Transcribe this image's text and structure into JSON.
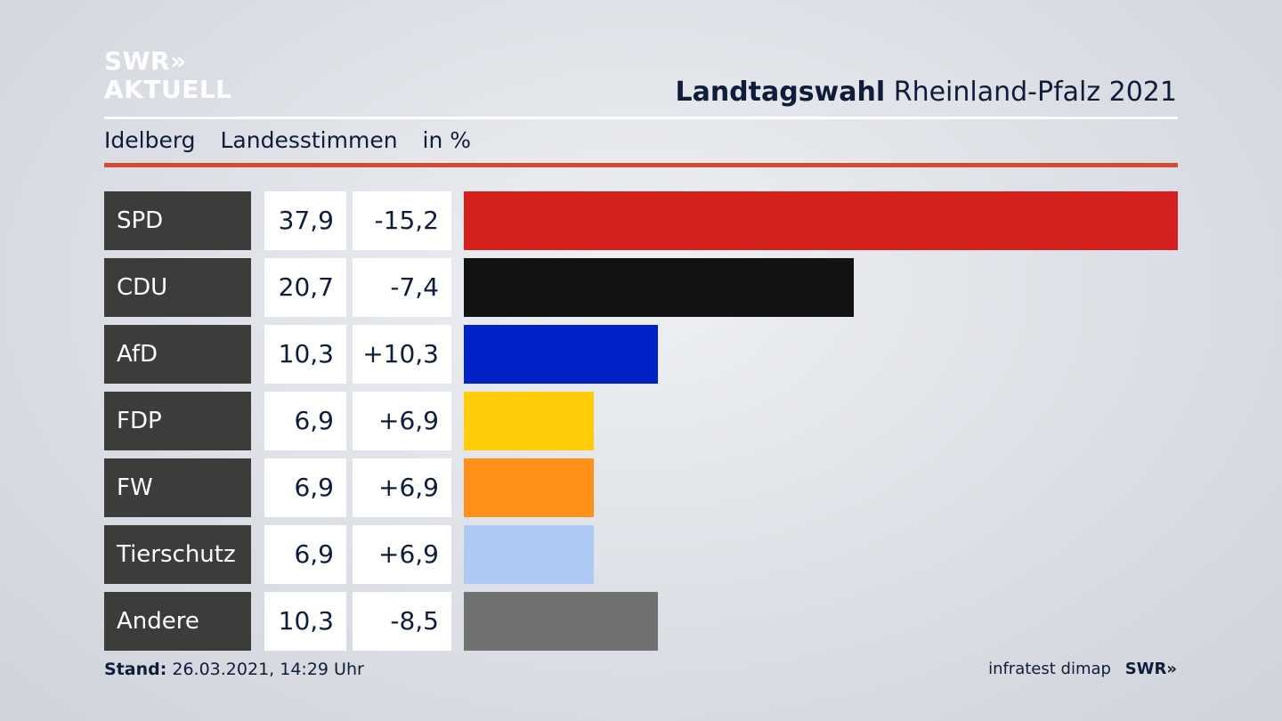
{
  "header": {
    "logo_line1": "SWR»",
    "logo_line2": "AKTUELL",
    "title_strong": "Landtagswahl",
    "title_rest": "Rheinland-Pfalz 2021"
  },
  "subtitle": {
    "place": "Idelberg",
    "measure": "Landesstimmen",
    "unit": "in %"
  },
  "colors": {
    "accent_rule": "#d24b37",
    "label_bg": "#3c3c3a"
  },
  "chart_data": {
    "type": "bar",
    "orientation": "horizontal",
    "categories": [
      "SPD",
      "CDU",
      "AfD",
      "FDP",
      "FW",
      "Tierschutz",
      "Andere"
    ],
    "values": [
      37.9,
      20.7,
      10.3,
      6.9,
      6.9,
      6.9,
      10.3
    ],
    "value_labels": [
      "37,9",
      "20,7",
      "10,3",
      "6,9",
      "6,9",
      "6,9",
      "10,3"
    ],
    "changes": [
      -15.2,
      -7.4,
      10.3,
      6.9,
      6.9,
      6.9,
      -8.5
    ],
    "change_labels": [
      "-15,2",
      "-7,4",
      "+10,3",
      "+6,9",
      "+6,9",
      "+6,9",
      "-8,5"
    ],
    "colors": [
      "#d52020",
      "#121212",
      "#0022c8",
      "#ffcc07",
      "#ff9019",
      "#aecaf2",
      "#717172"
    ],
    "xlim": [
      0,
      37.9
    ]
  },
  "footer": {
    "stand_label": "Stand:",
    "stand_value": "26.03.2021, 14:29 Uhr",
    "source": "infratest dimap",
    "brand": "SWR»"
  }
}
